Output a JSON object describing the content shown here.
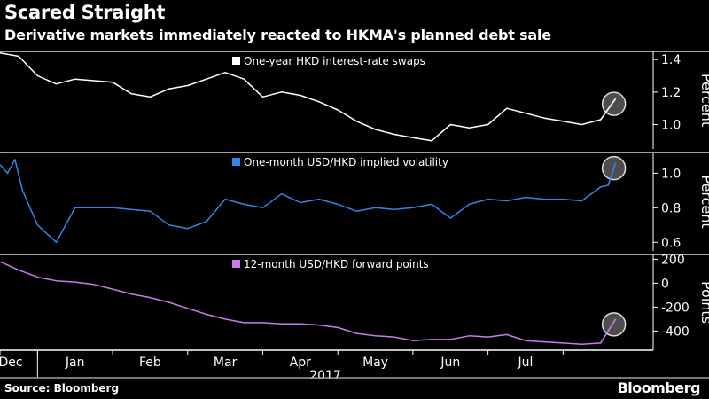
{
  "header": {
    "title": "Scared Straight",
    "subtitle": "Derivative markets immediately reacted to HKMA's planned debt sale"
  },
  "footer": {
    "source": "Source: Bloomberg",
    "brand": "Bloomberg"
  },
  "colors": {
    "background": "#000000",
    "series1": "#ffffff",
    "series2": "#2f86e6",
    "series3": "#c77ce8",
    "highlight_circle": "#9a9a9a"
  },
  "chart_data": [
    {
      "type": "line",
      "ylabel": "Percent",
      "ylim": [
        0.85,
        1.45
      ],
      "yticks": [
        1.0,
        1.2,
        1.4
      ],
      "ytick_labels": [
        "1.0",
        "1.2",
        "1.4"
      ],
      "series": [
        {
          "name": "One-year HKD interest-rate swaps",
          "x": [
            0,
            0.25,
            0.5,
            0.75,
            1,
            1.25,
            1.5,
            1.75,
            2,
            2.25,
            2.5,
            2.75,
            3,
            3.25,
            3.5,
            3.75,
            4,
            4.25,
            4.5,
            4.75,
            5,
            5.25,
            5.5,
            5.75,
            6,
            6.25,
            6.5,
            6.75,
            7,
            7.25,
            7.5,
            7.75,
            8,
            8.2
          ],
          "y": [
            1.44,
            1.42,
            1.3,
            1.25,
            1.28,
            1.27,
            1.26,
            1.19,
            1.17,
            1.22,
            1.24,
            1.28,
            1.32,
            1.28,
            1.17,
            1.2,
            1.18,
            1.14,
            1.09,
            1.02,
            0.97,
            0.94,
            0.92,
            0.9,
            1.0,
            0.98,
            1.0,
            1.1,
            1.07,
            1.04,
            1.02,
            1.0,
            1.03,
            1.16
          ]
        }
      ],
      "annotation": "circle highlight at latest point"
    },
    {
      "type": "line",
      "ylabel": "Percent",
      "ylim": [
        0.55,
        1.12
      ],
      "yticks": [
        0.6,
        0.8,
        1.0
      ],
      "ytick_labels": [
        "0.6",
        "0.8",
        "1.0"
      ],
      "series": [
        {
          "name": "One-month USD/HKD implied volatility",
          "x": [
            0,
            0.1,
            0.2,
            0.3,
            0.5,
            0.75,
            1,
            1.25,
            1.5,
            1.75,
            2,
            2.25,
            2.5,
            2.75,
            3,
            3.25,
            3.5,
            3.75,
            4,
            4.25,
            4.5,
            4.75,
            5,
            5.25,
            5.5,
            5.75,
            6,
            6.25,
            6.5,
            6.75,
            7,
            7.25,
            7.5,
            7.75,
            8,
            8.1,
            8.2
          ],
          "y": [
            1.05,
            1.0,
            1.08,
            0.9,
            0.7,
            0.6,
            0.8,
            0.8,
            0.8,
            0.79,
            0.78,
            0.7,
            0.68,
            0.72,
            0.85,
            0.82,
            0.8,
            0.88,
            0.83,
            0.85,
            0.82,
            0.78,
            0.8,
            0.79,
            0.8,
            0.82,
            0.74,
            0.82,
            0.85,
            0.84,
            0.86,
            0.85,
            0.85,
            0.84,
            0.92,
            0.93,
            1.06
          ]
        }
      ],
      "annotation": "circle highlight at latest point"
    },
    {
      "type": "line",
      "ylabel": "Points",
      "xlabel": "2017",
      "ylim": [
        -560,
        240
      ],
      "yticks": [
        200,
        0,
        -200,
        -400
      ],
      "ytick_labels": [
        "200",
        "0",
        "-200",
        "-400"
      ],
      "x_ticks": [
        0,
        0.5,
        1.5,
        2.5,
        3.5,
        4.5,
        5.5,
        6.5,
        7.5
      ],
      "categories": [
        "Dec",
        "Jan",
        "Feb",
        "Mar",
        "Apr",
        "May",
        "Jun",
        "Jul"
      ],
      "series": [
        {
          "name": "12-month USD/HKD forward points",
          "x": [
            0,
            0.25,
            0.5,
            0.75,
            1,
            1.25,
            1.5,
            1.75,
            2,
            2.25,
            2.5,
            2.75,
            3,
            3.25,
            3.5,
            3.75,
            4,
            4.25,
            4.5,
            4.75,
            5,
            5.25,
            5.5,
            5.75,
            6,
            6.25,
            6.5,
            6.75,
            7,
            7.25,
            7.5,
            7.75,
            8,
            8.2
          ],
          "y": [
            180,
            110,
            50,
            20,
            10,
            -10,
            -50,
            -90,
            -120,
            -160,
            -210,
            -260,
            -300,
            -330,
            -330,
            -340,
            -340,
            -350,
            -370,
            -420,
            -440,
            -450,
            -480,
            -470,
            -470,
            -440,
            -450,
            -430,
            -480,
            -490,
            -500,
            -510,
            -500,
            -300
          ]
        }
      ],
      "annotation": "circle highlight at latest point"
    }
  ]
}
